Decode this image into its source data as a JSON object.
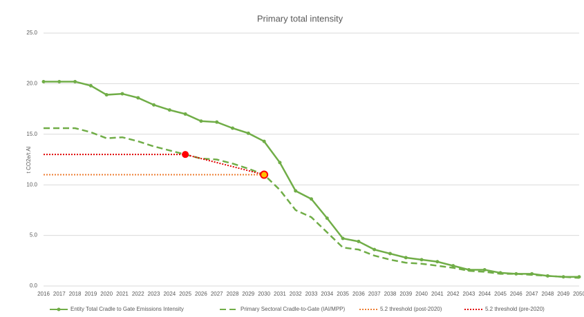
{
  "chart_data": {
    "type": "line",
    "title": "Primary total intensity",
    "y_label": "t CO2e/t Al",
    "categories": [
      "2016",
      "2017",
      "2018",
      "2019",
      "2020",
      "2021",
      "2022",
      "2023",
      "2024",
      "2025",
      "2026",
      "2027",
      "2028",
      "2029",
      "2030",
      "2031",
      "2032",
      "2033",
      "2034",
      "2035",
      "2036",
      "2037",
      "2038",
      "2039",
      "2040",
      "2041",
      "2042",
      "2043",
      "2044",
      "2045",
      "2046",
      "2047",
      "2048",
      "2049",
      "2050"
    ],
    "ylim": [
      0,
      25
    ],
    "yticks": [
      {
        "value": 0,
        "label": "0.0"
      },
      {
        "value": 5,
        "label": "5.0"
      },
      {
        "value": 10,
        "label": "10.0"
      },
      {
        "value": 15,
        "label": "15.0"
      },
      {
        "value": 20,
        "label": "20.0"
      },
      {
        "value": 25,
        "label": "25.0"
      }
    ],
    "grid": true,
    "legend": "bottom",
    "series": [
      {
        "name": "Entity Total Cradle to Gate Emissions Intensity",
        "color": "#70ad47",
        "style": "solid",
        "markers": true,
        "values": [
          20.2,
          20.2,
          20.2,
          19.8,
          18.9,
          19.0,
          18.6,
          17.9,
          17.4,
          17.0,
          16.3,
          16.2,
          15.6,
          15.1,
          14.3,
          12.2,
          9.4,
          8.6,
          6.7,
          4.7,
          4.4,
          3.6,
          3.2,
          2.8,
          2.6,
          2.4,
          2.0,
          1.6,
          1.6,
          1.3,
          1.2,
          1.2,
          1.0,
          0.9,
          0.9
        ]
      },
      {
        "name": "Primary Sectoral Cradle-to-Gate (IAI/MPP)",
        "color": "#70ad47",
        "style": "dashed",
        "values": [
          15.6,
          15.6,
          15.6,
          15.2,
          14.6,
          14.7,
          14.3,
          13.8,
          13.4,
          13.0,
          12.6,
          12.5,
          12.1,
          11.6,
          11.0,
          9.5,
          7.5,
          6.8,
          5.3,
          3.8,
          3.6,
          3.0,
          2.6,
          2.3,
          2.2,
          2.0,
          1.8,
          1.5,
          1.4,
          1.2,
          1.2,
          1.1,
          1.0,
          0.9,
          0.8
        ]
      },
      {
        "name": "5.2 threshold (post-2020)",
        "color": "#ed7d31",
        "style": "dotted",
        "values": [
          11,
          11,
          11,
          11,
          11,
          11,
          11,
          11,
          11,
          11,
          11,
          11,
          11,
          11,
          11,
          null,
          null,
          null,
          null,
          null,
          null,
          null,
          null,
          null,
          null,
          null,
          null,
          null,
          null,
          null,
          null,
          null,
          null,
          null,
          null
        ]
      },
      {
        "name": "5.2 threshold (pre-2020)",
        "color": "#e00000",
        "style": "dotted",
        "marker_at": [
          "2025",
          "2030"
        ],
        "values": [
          13,
          13,
          13,
          13,
          13,
          13,
          13,
          13,
          13,
          13,
          12.6,
          12.2,
          11.8,
          11.4,
          11.0,
          null,
          null,
          null,
          null,
          null,
          null,
          null,
          null,
          null,
          null,
          null,
          null,
          null,
          null,
          null,
          null,
          null,
          null,
          null,
          null
        ]
      }
    ]
  }
}
